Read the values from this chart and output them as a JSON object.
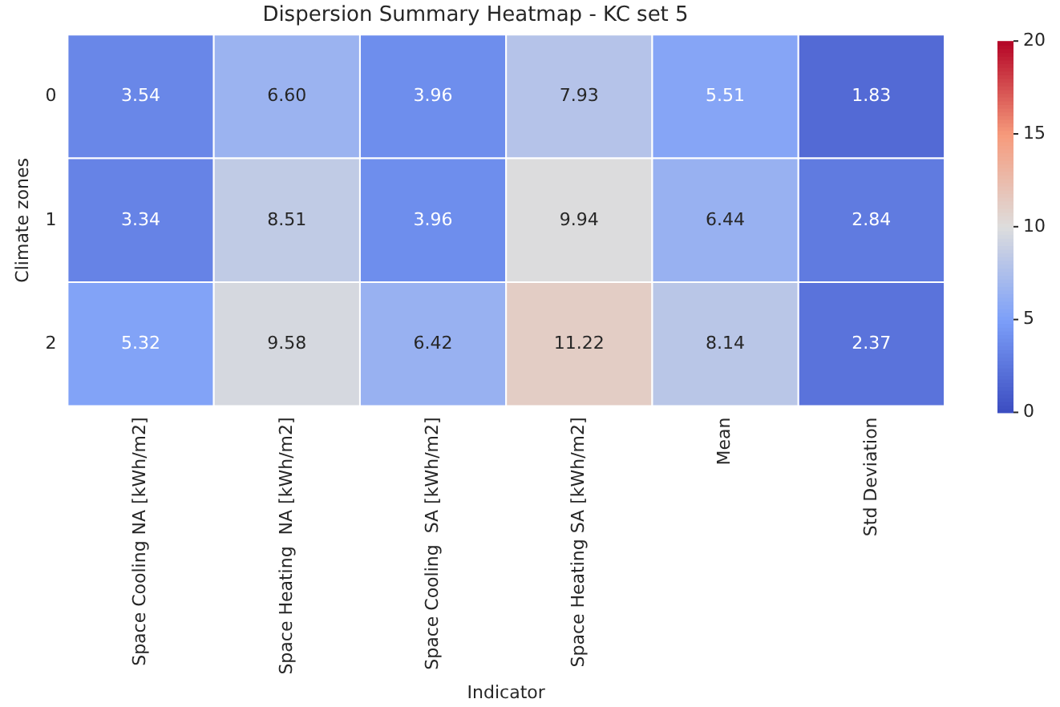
{
  "chart_data": {
    "type": "heatmap",
    "title": "Dispersion Summary Heatmap - KC set 5",
    "xlabel": "Indicator",
    "ylabel": "Climate zones",
    "categories": [
      "Space Cooling NA [kWh/m2]",
      "Space Heating  NA [kWh/m2]",
      "Space Cooling  SA [kWh/m2]",
      "Space Heating SA [kWh/m2]",
      "Mean",
      "Std Deviation"
    ],
    "y_categories": [
      "0",
      "1",
      "2"
    ],
    "cells": [
      [
        3.54,
        6.6,
        3.96,
        7.93,
        5.51,
        1.83
      ],
      [
        3.34,
        8.51,
        3.96,
        9.94,
        6.44,
        2.84
      ],
      [
        5.32,
        9.58,
        6.42,
        11.22,
        8.14,
        2.37
      ]
    ],
    "cell_labels": [
      [
        "3.54",
        "6.60",
        "3.96",
        "7.93",
        "5.51",
        "1.83"
      ],
      [
        "3.34",
        "8.51",
        "3.96",
        "9.94",
        "6.44",
        "2.84"
      ],
      [
        "5.32",
        "9.58",
        "6.42",
        "11.22",
        "8.14",
        "2.37"
      ]
    ],
    "clim": [
      0,
      20
    ],
    "cticks": [
      0,
      5,
      10,
      15,
      20
    ],
    "data_labels": true
  }
}
